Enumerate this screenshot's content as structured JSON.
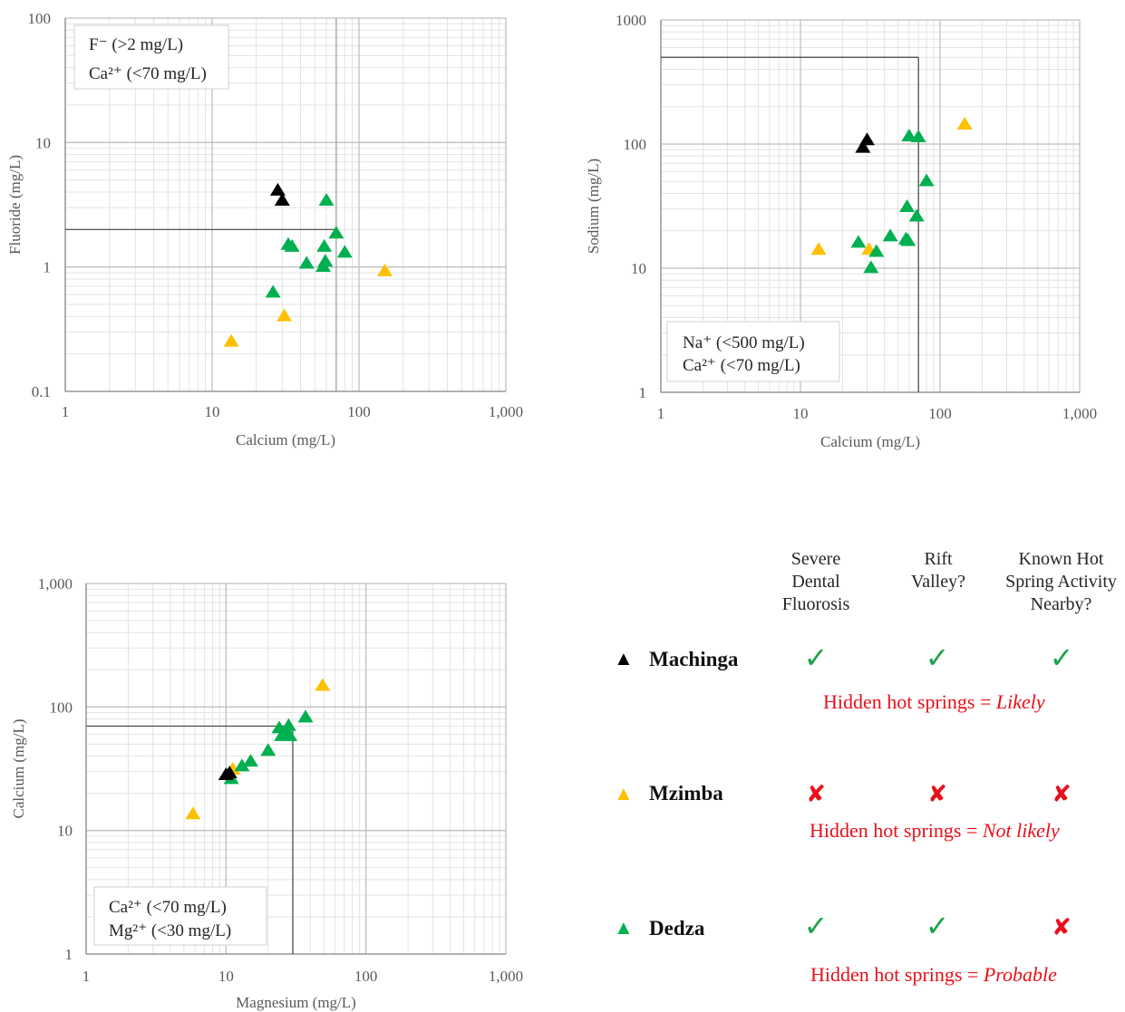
{
  "colors": {
    "Machinga": "#000000",
    "Mzimba": "#ffc000",
    "Dedza": "#00b050",
    "cross": "#e8101a",
    "check": "#1aa34a"
  },
  "chart_data": [
    {
      "type": "scatter",
      "xlabel": "Calcium (mg/L)",
      "ylabel": "Fluoride (mg/L)",
      "xscale": "log",
      "yscale": "log",
      "xlim": [
        1,
        1000
      ],
      "ylim": [
        0.1,
        100
      ],
      "xticks": [
        "1",
        "10",
        "100",
        "1,000"
      ],
      "yticks": [
        "0.1",
        "1",
        "10",
        "100"
      ],
      "threshold": {
        "x": 70,
        "y": 2
      },
      "legend_box": [
        "F⁻ (>2 mg/L)",
        "Ca²⁺ (<70 mg/L)"
      ],
      "legend_position": "top-left",
      "series": [
        {
          "name": "Machinga",
          "points": [
            [
              28,
              4.1
            ],
            [
              30,
              3.4
            ]
          ]
        },
        {
          "name": "Mzimba",
          "points": [
            [
              13.5,
              0.25
            ],
            [
              31,
              0.4
            ],
            [
              150,
              0.92
            ]
          ]
        },
        {
          "name": "Dedza",
          "points": [
            [
              26,
              0.62
            ],
            [
              33,
              1.5
            ],
            [
              35,
              1.45
            ],
            [
              44,
              1.06
            ],
            [
              57,
              1.0
            ],
            [
              58,
              1.45
            ],
            [
              59,
              1.1
            ],
            [
              60,
              3.4
            ],
            [
              70,
              1.85
            ],
            [
              80,
              1.3
            ]
          ]
        }
      ]
    },
    {
      "type": "scatter",
      "xlabel": "Calcium (mg/L)",
      "ylabel": "Sodium (mg/L)",
      "xscale": "log",
      "yscale": "log",
      "xlim": [
        1,
        1000
      ],
      "ylim": [
        1,
        1000
      ],
      "xticks": [
        "1",
        "10",
        "100",
        "1,000"
      ],
      "yticks": [
        "1",
        "10",
        "100",
        "1000"
      ],
      "threshold": {
        "x": 70,
        "y": 500
      },
      "legend_box": [
        "Na⁺ (<500 mg/L)",
        "Ca²⁺ (<70 mg/L)"
      ],
      "legend_position": "bottom-left",
      "series": [
        {
          "name": "Machinga",
          "points": [
            [
              28,
              93
            ],
            [
              30,
              107
            ]
          ]
        },
        {
          "name": "Mzimba",
          "points": [
            [
              13.5,
              14
            ],
            [
              31,
              14
            ],
            [
              150,
              143
            ]
          ]
        },
        {
          "name": "Dedza",
          "points": [
            [
              26,
              16
            ],
            [
              32,
              10
            ],
            [
              35,
              13.5
            ],
            [
              44,
              18
            ],
            [
              57,
              17
            ],
            [
              58,
              31
            ],
            [
              59,
              16.5
            ],
            [
              60,
              115
            ],
            [
              68,
              26
            ],
            [
              70,
              113
            ],
            [
              80,
              50
            ]
          ]
        }
      ]
    },
    {
      "type": "scatter",
      "xlabel": "Magnesium (mg/L)",
      "ylabel": "Calcium (mg/L)",
      "xscale": "log",
      "yscale": "log",
      "xlim": [
        1,
        1000
      ],
      "ylim": [
        1,
        1000
      ],
      "xticks": [
        "1",
        "10",
        "100",
        "1,000"
      ],
      "yticks": [
        "1",
        "10",
        "100",
        "1,000"
      ],
      "threshold": {
        "x": 30,
        "y": 70
      },
      "legend_box": [
        "Ca²⁺ (<70 mg/L)",
        "Mg²⁺  (<30 mg/L)"
      ],
      "legend_position": "bottom-left",
      "series": [
        {
          "name": "Machinga",
          "points": [
            [
              10,
              28
            ],
            [
              10.6,
              29
            ]
          ]
        },
        {
          "name": "Mzimba",
          "points": [
            [
              5.8,
              13.5
            ],
            [
              11.2,
              31
            ],
            [
              49,
              148
            ]
          ]
        },
        {
          "name": "Dedza",
          "points": [
            [
              10.9,
              26
            ],
            [
              13,
              33
            ],
            [
              15,
              36
            ],
            [
              20,
              44
            ],
            [
              24,
              67
            ],
            [
              25,
              58
            ],
            [
              27,
              60
            ],
            [
              28,
              70
            ],
            [
              28.5,
              58
            ],
            [
              37,
              82
            ]
          ]
        }
      ]
    }
  ],
  "table": {
    "headers": [
      "Severe\nDental\nFluorosis",
      "Rift\nValley?",
      "Known Hot\nSpring Activity\nNearby?"
    ],
    "check_symbol": "✓",
    "cross_symbol": "✘",
    "conclusion_prefix": "Hidden hot springs = ",
    "rows": [
      {
        "site": "Machinga",
        "marker": "▲",
        "color_key": "Machinga",
        "marks": [
          "yes",
          "yes",
          "yes"
        ],
        "conclusion": "Likely"
      },
      {
        "site": "Mzimba",
        "marker": "▲",
        "color_key": "Mzimba",
        "marks": [
          "no",
          "no",
          "no"
        ],
        "conclusion": "Not likely"
      },
      {
        "site": "Dedza",
        "marker": "▲",
        "color_key": "Dedza",
        "marks": [
          "yes",
          "yes",
          "no"
        ],
        "conclusion": "Probable"
      }
    ]
  }
}
